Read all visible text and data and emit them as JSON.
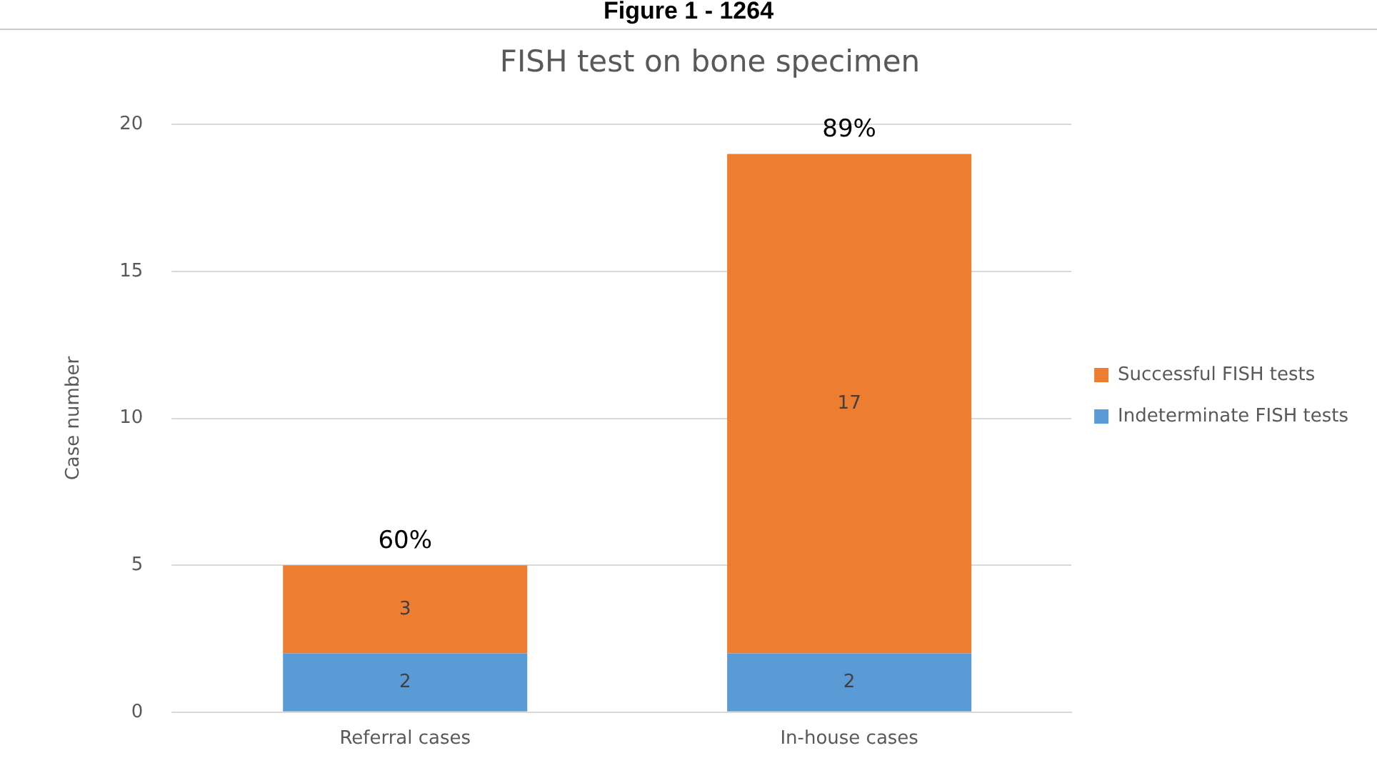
{
  "chart_data": {
    "type": "bar",
    "title": "FISH test on bone specimen",
    "ylabel": "Case number",
    "categories": [
      "Referral cases",
      "In-house cases"
    ],
    "series": [
      {
        "name": "Indeterminate FISH tests",
        "color": "#5b9bd5",
        "values": [
          2,
          2
        ]
      },
      {
        "name": "Successful FISH tests",
        "color": "#ed7d31",
        "values": [
          3,
          17
        ]
      }
    ],
    "stacked": true,
    "data_labels": true,
    "ylim": [
      0,
      20
    ],
    "yticks": [
      0,
      5,
      10,
      15,
      20
    ],
    "grid": "y",
    "legend": "right",
    "annotations": [
      "Figure 1 - 1264",
      {
        "text": "60%",
        "x": "Referral cases",
        "y": 5
      },
      {
        "text": "89%",
        "x": "In-house cases",
        "y": 19
      }
    ]
  }
}
